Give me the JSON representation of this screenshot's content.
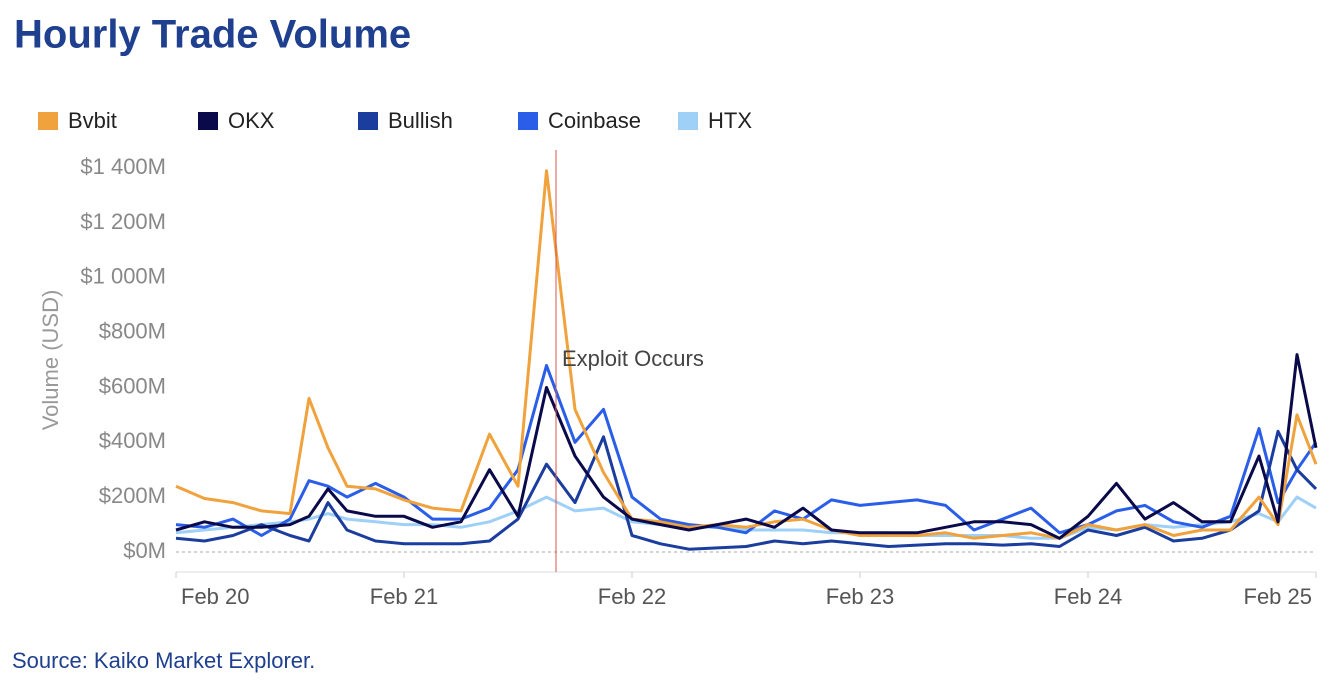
{
  "chart_data": {
    "type": "line",
    "title": "Hourly Trade Volume",
    "source": "Source: Kaiko Market Explorer.",
    "ylabel": "Volume (USD)",
    "x": [
      0,
      3,
      6,
      9,
      12,
      14,
      16,
      18,
      21,
      24,
      27,
      30,
      33,
      36,
      39,
      42,
      45,
      48,
      51,
      54,
      57,
      60,
      63,
      66,
      69,
      72,
      75,
      78,
      81,
      84,
      87,
      90,
      93,
      96,
      99,
      102,
      105,
      108,
      111,
      114,
      116,
      118,
      120
    ],
    "xlim": [
      0,
      120
    ],
    "xticks": [
      {
        "value": 0,
        "label": "Feb 20"
      },
      {
        "value": 24,
        "label": "Feb 21"
      },
      {
        "value": 48,
        "label": "Feb 22"
      },
      {
        "value": 72,
        "label": "Feb 23"
      },
      {
        "value": 96,
        "label": "Feb 24"
      },
      {
        "value": 120,
        "label": "Feb 25"
      }
    ],
    "ylim": [
      -73,
      1466
    ],
    "yticks": [
      {
        "value": 0,
        "label": "$0M"
      },
      {
        "value": 200,
        "label": "$200M"
      },
      {
        "value": 400,
        "label": "$400M"
      },
      {
        "value": 600,
        "label": "$600M"
      },
      {
        "value": 800,
        "label": "$800M"
      },
      {
        "value": 1000,
        "label": "$1 000M"
      },
      {
        "value": 1200,
        "label": "$1 200M"
      },
      {
        "value": 1400,
        "label": "$1 400M"
      }
    ],
    "annotation": {
      "x": 40,
      "text": "Exploit Occurs"
    },
    "series": [
      {
        "name": "Bvbit",
        "color": "#f0a23c",
        "values": [
          240,
          195,
          180,
          150,
          140,
          560,
          380,
          240,
          230,
          190,
          160,
          150,
          430,
          240,
          1390,
          520,
          290,
          120,
          110,
          90,
          100,
          90,
          110,
          120,
          80,
          60,
          60,
          60,
          70,
          50,
          60,
          70,
          50,
          100,
          80,
          100,
          60,
          80,
          80,
          200,
          100,
          500,
          320
        ]
      },
      {
        "name": "OKX",
        "color": "#0a0a4a",
        "values": [
          80,
          110,
          90,
          90,
          100,
          130,
          230,
          150,
          130,
          130,
          90,
          110,
          300,
          130,
          600,
          350,
          200,
          120,
          100,
          80,
          100,
          120,
          90,
          160,
          80,
          70,
          70,
          70,
          90,
          110,
          110,
          100,
          50,
          130,
          250,
          120,
          180,
          110,
          110,
          350,
          110,
          720,
          380
        ]
      },
      {
        "name": "Bullish",
        "color": "#1a3d9e",
        "values": [
          50,
          40,
          60,
          100,
          60,
          40,
          180,
          80,
          40,
          30,
          30,
          30,
          40,
          120,
          320,
          180,
          420,
          60,
          30,
          10,
          15,
          20,
          40,
          30,
          40,
          30,
          20,
          25,
          30,
          30,
          25,
          30,
          20,
          80,
          60,
          90,
          40,
          50,
          80,
          150,
          440,
          300,
          230
        ]
      },
      {
        "name": "Coinbase",
        "color": "#2a5ee8",
        "values": [
          100,
          90,
          120,
          60,
          120,
          260,
          240,
          200,
          250,
          200,
          120,
          120,
          160,
          300,
          680,
          400,
          520,
          200,
          120,
          100,
          90,
          70,
          150,
          120,
          190,
          170,
          180,
          190,
          170,
          80,
          120,
          160,
          70,
          100,
          150,
          170,
          110,
          90,
          130,
          450,
          180,
          300,
          400
        ]
      },
      {
        "name": "HTX",
        "color": "#9fd0f8",
        "values": [
          70,
          80,
          90,
          100,
          110,
          120,
          140,
          120,
          110,
          100,
          100,
          90,
          110,
          150,
          200,
          150,
          160,
          110,
          100,
          90,
          90,
          80,
          80,
          80,
          70,
          70,
          70,
          60,
          60,
          60,
          60,
          50,
          50,
          90,
          80,
          100,
          90,
          100,
          110,
          140,
          110,
          200,
          160
        ]
      }
    ]
  }
}
